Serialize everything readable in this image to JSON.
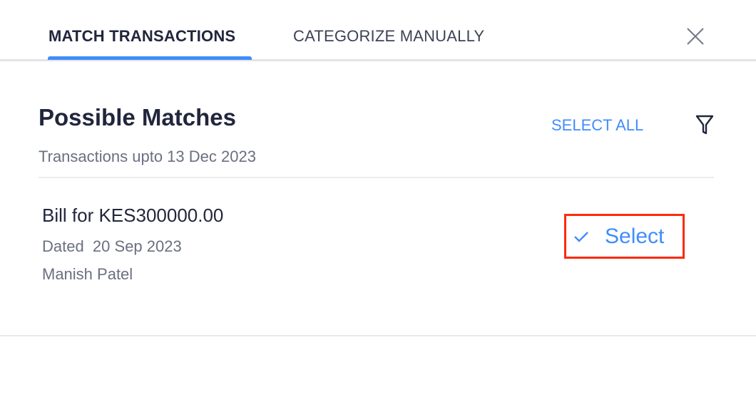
{
  "tabs": [
    {
      "label": "MATCH TRANSACTIONS",
      "active": true
    },
    {
      "label": "CATEGORIZE MANUALLY",
      "active": false
    }
  ],
  "accent_color": "#408dfb",
  "header": {
    "title": "Possible Matches",
    "subtitle": "Transactions upto 13 Dec 2023",
    "select_all_label": "SELECT ALL",
    "filter_icon": "filter-icon",
    "close_icon": "close-icon"
  },
  "matches": [
    {
      "title": "Bill for KES300000.00",
      "dated": "Dated  20 Sep 2023",
      "contact": "Manish Patel",
      "select_label": "Select",
      "select_icon": "check-icon"
    }
  ]
}
